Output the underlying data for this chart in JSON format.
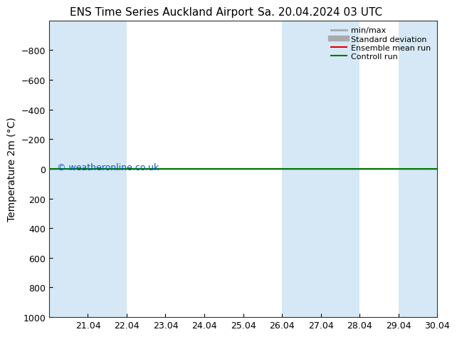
{
  "title_left": "ENS Time Series Auckland Airport",
  "title_right": "Sa. 20.04.2024 03 UTC",
  "ylabel": "Temperature 2m (°C)",
  "ylim_bottom": -1000,
  "ylim_top": 1000,
  "yticks": [
    -800,
    -600,
    -400,
    -200,
    0,
    200,
    400,
    600,
    800,
    1000
  ],
  "background_color": "#ffffff",
  "plot_bg_color": "#ffffff",
  "band_color": "#d6e8f5",
  "watermark": "© weatheronline.co.uk",
  "watermark_color": "#0055cc",
  "legend_items": [
    {
      "label": "min/max",
      "color": "#aaaaaa",
      "lw": 2,
      "type": "line"
    },
    {
      "label": "Standard deviation",
      "color": "#aaaaaa",
      "lw": 6,
      "type": "line"
    },
    {
      "label": "Ensemble mean run",
      "color": "#dd0000",
      "lw": 1.5,
      "type": "line"
    },
    {
      "label": "Controll run",
      "color": "#007700",
      "lw": 1.5,
      "type": "line"
    }
  ],
  "green_line_y": 0,
  "green_line_color": "#007700",
  "cyan_line_y": 0,
  "cyan_line_color": "#0055cc",
  "xtick_labels": [
    "21.04",
    "22.04",
    "23.04",
    "24.04",
    "25.04",
    "26.04",
    "27.04",
    "28.04",
    "29.04",
    "30.04"
  ],
  "xlim": [
    0,
    10
  ],
  "band_positions": [
    [
      0,
      1
    ],
    [
      1,
      2
    ],
    [
      6,
      7
    ],
    [
      7,
      8
    ],
    [
      9,
      10
    ]
  ],
  "title_fontsize": 11,
  "axis_fontsize": 10,
  "tick_fontsize": 9
}
